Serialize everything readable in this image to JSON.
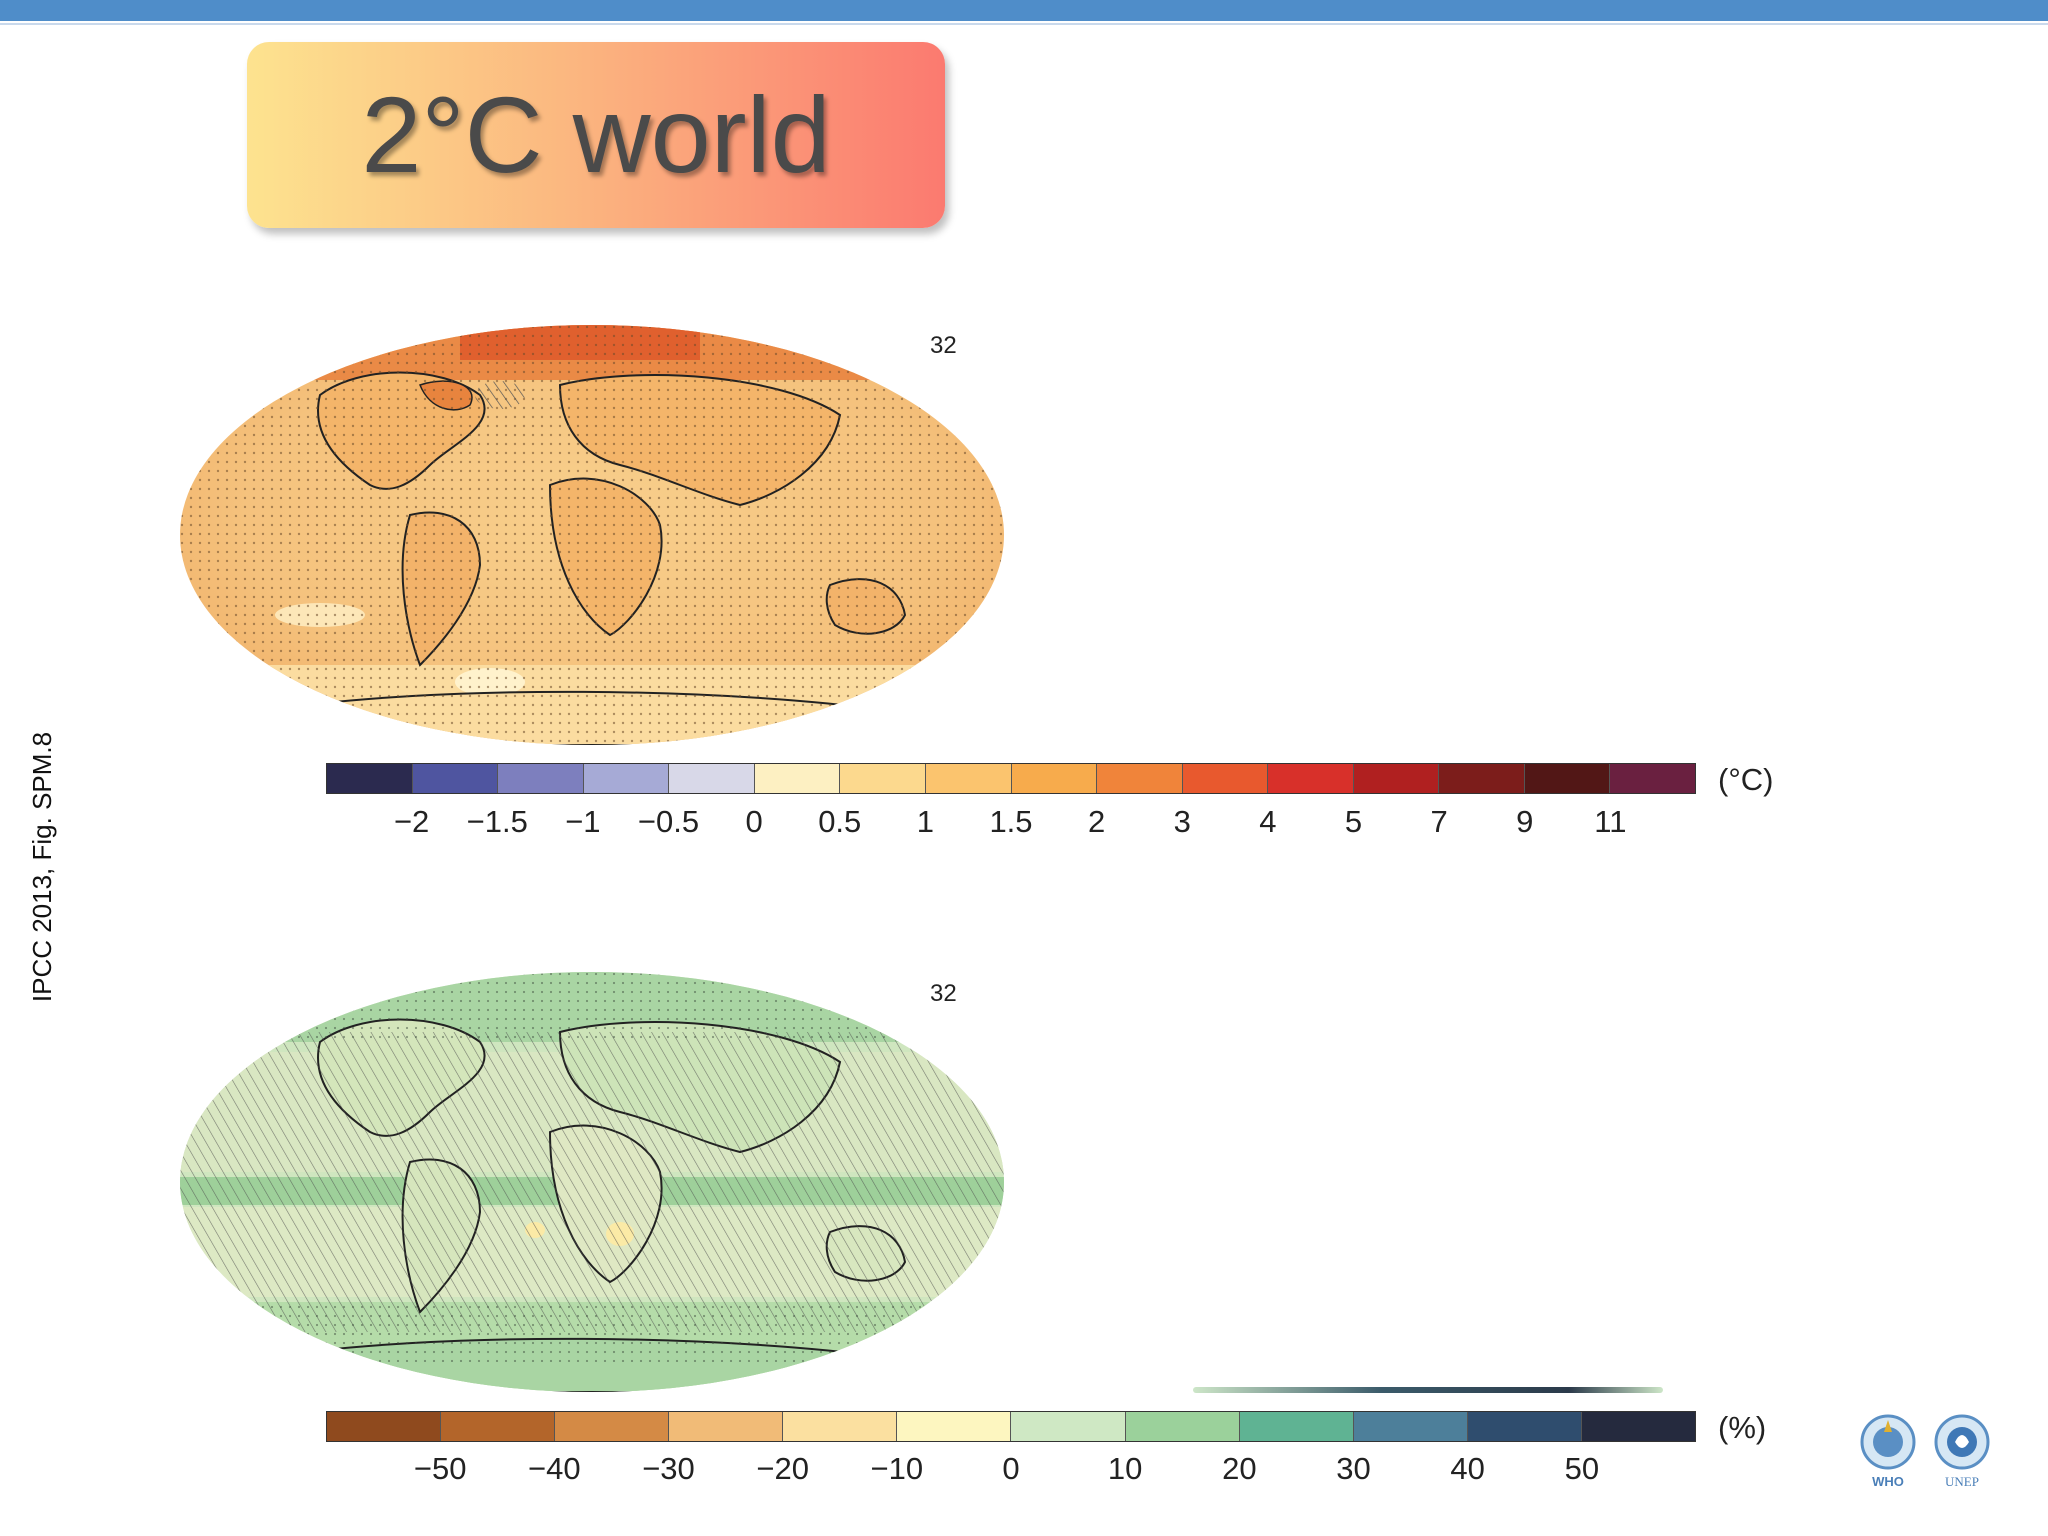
{
  "slide": {
    "title": "2°C world",
    "source_label": "IPCC 2013, Fig. SPM.8"
  },
  "temperature_panel": {
    "model_count": "32",
    "unit": "(°C)",
    "colorbar_ticks": [
      "−2",
      "−1.5",
      "−1",
      "−0.5",
      "0",
      "0.5",
      "1",
      "1.5",
      "2",
      "3",
      "4",
      "5",
      "7",
      "9",
      "11"
    ],
    "colorbar_colors": [
      "#2b2a4f",
      "#4f55a0",
      "#7d7fbe",
      "#a6aad6",
      "#d8d8e8",
      "#fdf0c2",
      "#fcd98e",
      "#fbc46e",
      "#f7ab4c",
      "#f0843a",
      "#e8592e",
      "#d8302a",
      "#b02020",
      "#7c1d1b",
      "#521716",
      "#6a2040"
    ]
  },
  "precipitation_panel": {
    "model_count": "32",
    "unit": "(%)",
    "colorbar_ticks": [
      "−50",
      "−40",
      "−30",
      "−20",
      "−10",
      "0",
      "10",
      "20",
      "30",
      "40",
      "50"
    ],
    "colorbar_colors": [
      "#8f4a1e",
      "#b3652a",
      "#d48a45",
      "#f1bb77",
      "#fbe0a0",
      "#fdf6c0",
      "#cfe8c4",
      "#9bd19b",
      "#5fb393",
      "#4d7f9a",
      "#2f4d6e",
      "#252a3e"
    ]
  },
  "logos": {
    "who": "WHO",
    "unep": "UNEP"
  }
}
